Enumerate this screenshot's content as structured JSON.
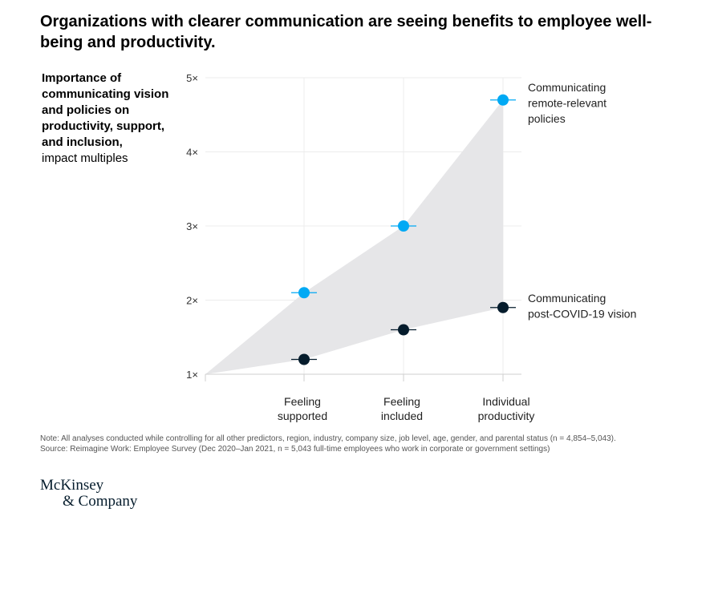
{
  "title": "Organizations with clearer communication are seeing benefits to employee well-being and productivity.",
  "y_axis_label": {
    "bold": "Importance of communicating vision and policies on productivity, support, and inclusion,",
    "unit": "impact multiples"
  },
  "chart_data": {
    "type": "scatter",
    "categories": [
      "Feeling supported",
      "Feeling included",
      "Individual productivity"
    ],
    "category_labels": [
      [
        "Feeling",
        "supported"
      ],
      [
        "Feeling",
        "included"
      ],
      [
        "Individual",
        "productivity"
      ]
    ],
    "y_ticks": [
      "1×",
      "2×",
      "3×",
      "4×",
      "5×"
    ],
    "y_tick_values": [
      1,
      2,
      3,
      4,
      5
    ],
    "ylim": [
      1,
      5
    ],
    "grid": true,
    "series": [
      {
        "name": "Communicating remote-relevant policies",
        "label_lines": [
          "Communicating",
          "remote-relevant",
          "policies"
        ],
        "color": "#00a9f4",
        "values": [
          2.1,
          3.0,
          4.7
        ]
      },
      {
        "name": "Communicating post-COVID-19 vision",
        "label_lines": [
          "Communicating",
          "post-COVID-19 vision"
        ],
        "color": "#051c2c",
        "values": [
          1.2,
          1.6,
          1.9
        ]
      }
    ],
    "shaded_area_color": "#e6e6e8"
  },
  "notes": {
    "note": "Note: All analyses conducted while controlling for all other predictors, region, industry, company size, job level, age, gender, and parental status (n = 4,854–5,043).",
    "source": "Source: Reimagine Work: Employee Survey (Dec 2020–Jan 2021, n = 5,043 full-time employees who work in corporate or government settings)"
  },
  "logo": {
    "line1": "McKinsey",
    "line2": "& Company"
  }
}
